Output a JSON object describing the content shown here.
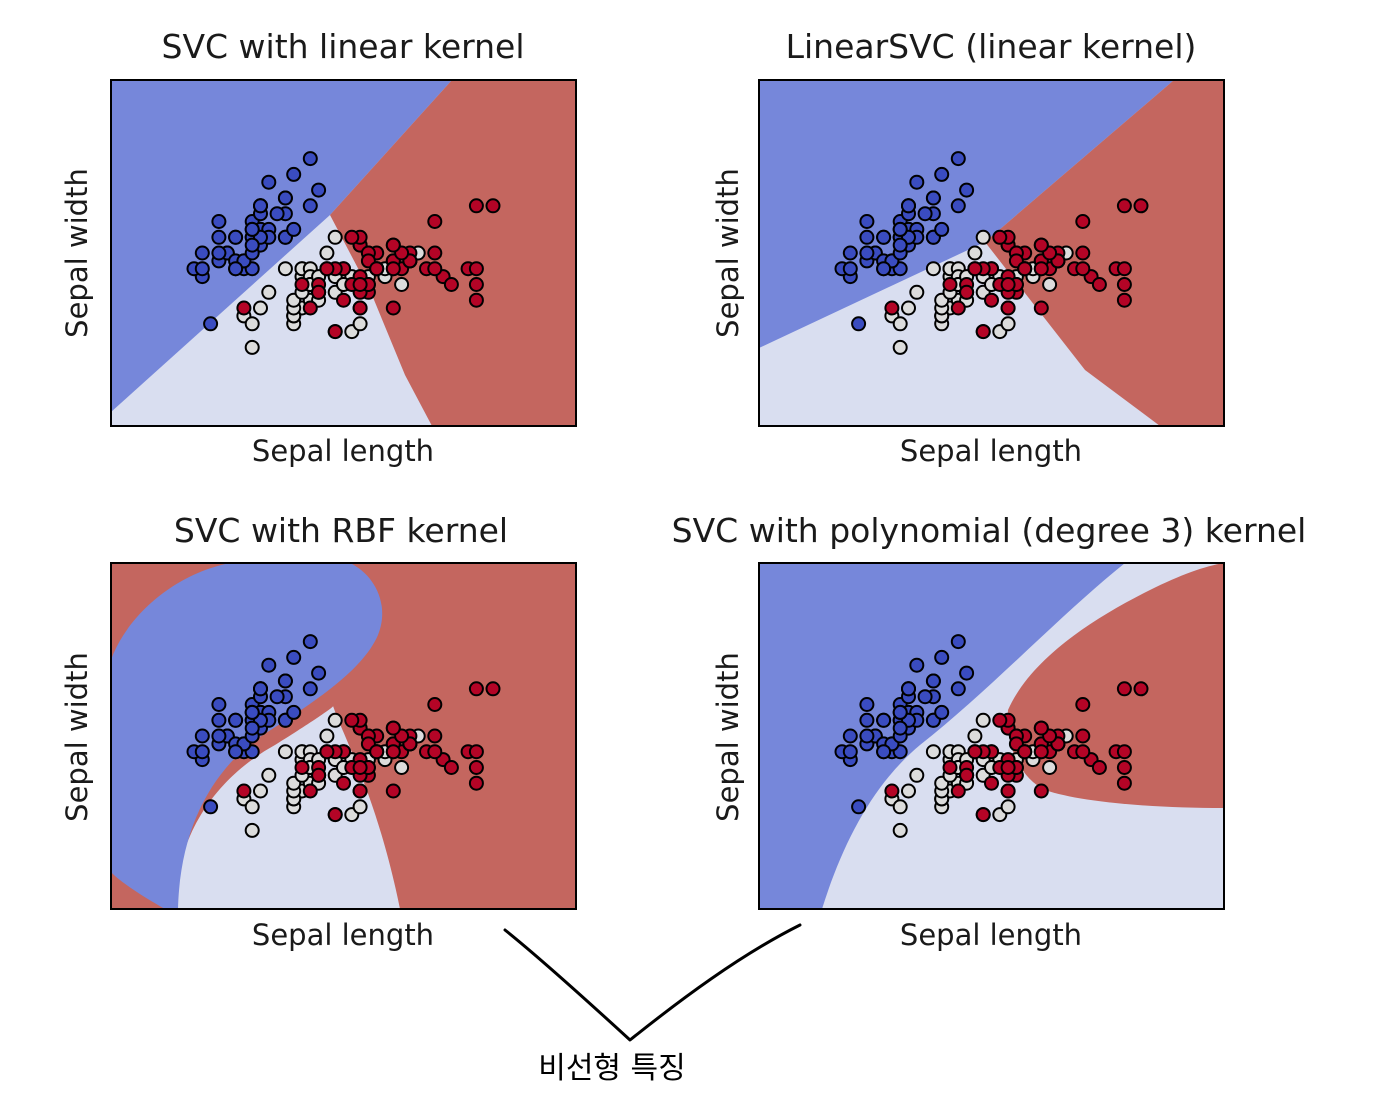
{
  "colors": {
    "blue_region": "#7687da",
    "light_region": "#d9def0",
    "red_region": "#c4665f",
    "blue_point": "#3a4cc0",
    "light_point": "#dcdcdc",
    "red_point": "#b40426",
    "edge": "#000000"
  },
  "chart_data": [
    {
      "type": "scatter",
      "title": "SVC with linear kernel",
      "xlabel": "Sepal length",
      "ylabel": "Sepal width",
      "xlim": [
        3.3,
        8.9
      ],
      "ylim": [
        1.0,
        5.4
      ],
      "xticks": "none",
      "yticks": "none",
      "legend": "none"
    },
    {
      "type": "scatter",
      "title": "LinearSVC (linear kernel)",
      "xlabel": "Sepal length",
      "ylabel": "Sepal width",
      "xlim": [
        3.3,
        8.9
      ],
      "ylim": [
        1.0,
        5.4
      ],
      "xticks": "none",
      "yticks": "none",
      "legend": "none"
    },
    {
      "type": "scatter",
      "title": "SVC with RBF kernel",
      "xlabel": "Sepal length",
      "ylabel": "Sepal width",
      "xlim": [
        3.3,
        8.9
      ],
      "ylim": [
        1.0,
        5.4
      ],
      "xticks": "none",
      "yticks": "none",
      "legend": "none"
    },
    {
      "type": "scatter",
      "title": "SVC with polynomial (degree 3) kernel",
      "xlabel": "Sepal length",
      "ylabel": "Sepal width",
      "xlim": [
        3.3,
        8.9
      ],
      "ylim": [
        1.0,
        5.4
      ],
      "xticks": "none",
      "yticks": "none",
      "legend": "none"
    }
  ],
  "annotation": {
    "text": "비선형 특징"
  },
  "points": {
    "blue": [
      [
        5.1,
        3.5
      ],
      [
        4.9,
        3.0
      ],
      [
        4.7,
        3.2
      ],
      [
        4.6,
        3.1
      ],
      [
        5.0,
        3.6
      ],
      [
        5.4,
        3.9
      ],
      [
        4.6,
        3.4
      ],
      [
        5.0,
        3.4
      ],
      [
        4.4,
        2.9
      ],
      [
        4.9,
        3.1
      ],
      [
        5.4,
        3.7
      ],
      [
        4.8,
        3.4
      ],
      [
        4.8,
        3.0
      ],
      [
        4.3,
        3.0
      ],
      [
        5.8,
        4.0
      ],
      [
        5.7,
        4.4
      ],
      [
        5.4,
        3.9
      ],
      [
        5.1,
        3.5
      ],
      [
        5.7,
        3.8
      ],
      [
        5.1,
        3.8
      ],
      [
        5.4,
        3.4
      ],
      [
        5.1,
        3.7
      ],
      [
        4.6,
        3.6
      ],
      [
        5.1,
        3.3
      ],
      [
        4.8,
        3.4
      ],
      [
        5.0,
        3.0
      ],
      [
        5.0,
        3.4
      ],
      [
        5.2,
        3.5
      ],
      [
        5.2,
        3.4
      ],
      [
        4.7,
        3.2
      ],
      [
        4.8,
        3.1
      ],
      [
        5.4,
        3.4
      ],
      [
        5.2,
        4.1
      ],
      [
        5.5,
        4.2
      ],
      [
        4.9,
        3.1
      ],
      [
        5.0,
        3.2
      ],
      [
        5.5,
        3.5
      ],
      [
        4.4,
        3.0
      ],
      [
        5.1,
        3.4
      ],
      [
        5.0,
        3.5
      ],
      [
        4.5,
        2.3
      ],
      [
        4.4,
        3.2
      ],
      [
        5.0,
        3.5
      ],
      [
        5.1,
        3.8
      ],
      [
        4.8,
        3.0
      ],
      [
        5.1,
        3.8
      ],
      [
        4.6,
        3.2
      ],
      [
        5.3,
        3.7
      ],
      [
        5.0,
        3.3
      ]
    ],
    "light": [
      [
        5.5,
        2.3
      ],
      [
        5.7,
        2.8
      ],
      [
        6.3,
        3.3
      ],
      [
        4.9,
        2.4
      ],
      [
        6.6,
        2.9
      ],
      [
        5.2,
        2.7
      ],
      [
        5.0,
        2.0
      ],
      [
        5.9,
        3.0
      ],
      [
        6.0,
        2.2
      ],
      [
        6.1,
        2.9
      ],
      [
        5.6,
        2.9
      ],
      [
        5.6,
        3.0
      ],
      [
        5.8,
        2.7
      ],
      [
        6.2,
        2.2
      ],
      [
        5.6,
        2.5
      ],
      [
        5.9,
        3.2
      ],
      [
        6.1,
        2.8
      ],
      [
        6.3,
        2.5
      ],
      [
        6.4,
        2.9
      ],
      [
        6.6,
        3.0
      ],
      [
        6.8,
        2.8
      ],
      [
        6.0,
        2.9
      ],
      [
        5.7,
        2.6
      ],
      [
        5.5,
        2.4
      ],
      [
        5.5,
        2.4
      ],
      [
        5.8,
        2.7
      ],
      [
        6.0,
        2.7
      ],
      [
        5.4,
        3.0
      ],
      [
        6.0,
        3.4
      ],
      [
        6.3,
        2.3
      ],
      [
        5.6,
        3.0
      ],
      [
        5.5,
        2.5
      ],
      [
        5.5,
        2.6
      ],
      [
        6.1,
        3.0
      ],
      [
        5.8,
        2.6
      ],
      [
        5.0,
        2.3
      ],
      [
        5.6,
        2.7
      ],
      [
        5.7,
        3.0
      ],
      [
        5.7,
        2.9
      ],
      [
        6.2,
        2.9
      ],
      [
        5.1,
        2.5
      ],
      [
        5.7,
        2.8
      ],
      [
        6.7,
        3.1
      ],
      [
        6.9,
        3.1
      ],
      [
        6.1,
        2.8
      ],
      [
        6.4,
        3.2
      ],
      [
        6.7,
        3.0
      ],
      [
        7.0,
        3.2
      ],
      [
        5.7,
        2.8
      ],
      [
        5.8,
        2.9
      ]
    ],
    "red": [
      [
        6.3,
        3.3
      ],
      [
        5.8,
        2.7
      ],
      [
        7.1,
        3.0
      ],
      [
        6.3,
        2.9
      ],
      [
        6.5,
        3.0
      ],
      [
        7.6,
        3.0
      ],
      [
        4.9,
        2.5
      ],
      [
        7.3,
        2.9
      ],
      [
        6.7,
        2.5
      ],
      [
        7.2,
        3.6
      ],
      [
        6.5,
        3.2
      ],
      [
        6.4,
        2.7
      ],
      [
        6.8,
        3.0
      ],
      [
        5.7,
        2.5
      ],
      [
        5.8,
        2.8
      ],
      [
        6.4,
        3.2
      ],
      [
        6.5,
        3.0
      ],
      [
        7.7,
        3.8
      ],
      [
        7.7,
        2.6
      ],
      [
        6.0,
        2.2
      ],
      [
        6.9,
        3.2
      ],
      [
        5.6,
        2.8
      ],
      [
        7.7,
        2.8
      ],
      [
        6.3,
        2.7
      ],
      [
        6.7,
        3.3
      ],
      [
        7.2,
        3.2
      ],
      [
        6.2,
        2.8
      ],
      [
        6.1,
        3.0
      ],
      [
        6.4,
        2.8
      ],
      [
        7.2,
        3.0
      ],
      [
        7.4,
        2.8
      ],
      [
        7.9,
        3.8
      ],
      [
        6.4,
        2.8
      ],
      [
        6.3,
        2.8
      ],
      [
        6.1,
        2.6
      ],
      [
        7.7,
        3.0
      ],
      [
        6.3,
        3.4
      ],
      [
        6.4,
        3.1
      ],
      [
        6.0,
        3.0
      ],
      [
        6.9,
        3.1
      ],
      [
        6.7,
        3.1
      ],
      [
        6.9,
        3.1
      ],
      [
        5.8,
        2.7
      ],
      [
        6.8,
        3.2
      ],
      [
        6.7,
        3.3
      ],
      [
        6.7,
        3.0
      ],
      [
        6.3,
        2.5
      ],
      [
        6.5,
        3.0
      ],
      [
        6.2,
        3.4
      ],
      [
        5.9,
        3.0
      ]
    ]
  }
}
